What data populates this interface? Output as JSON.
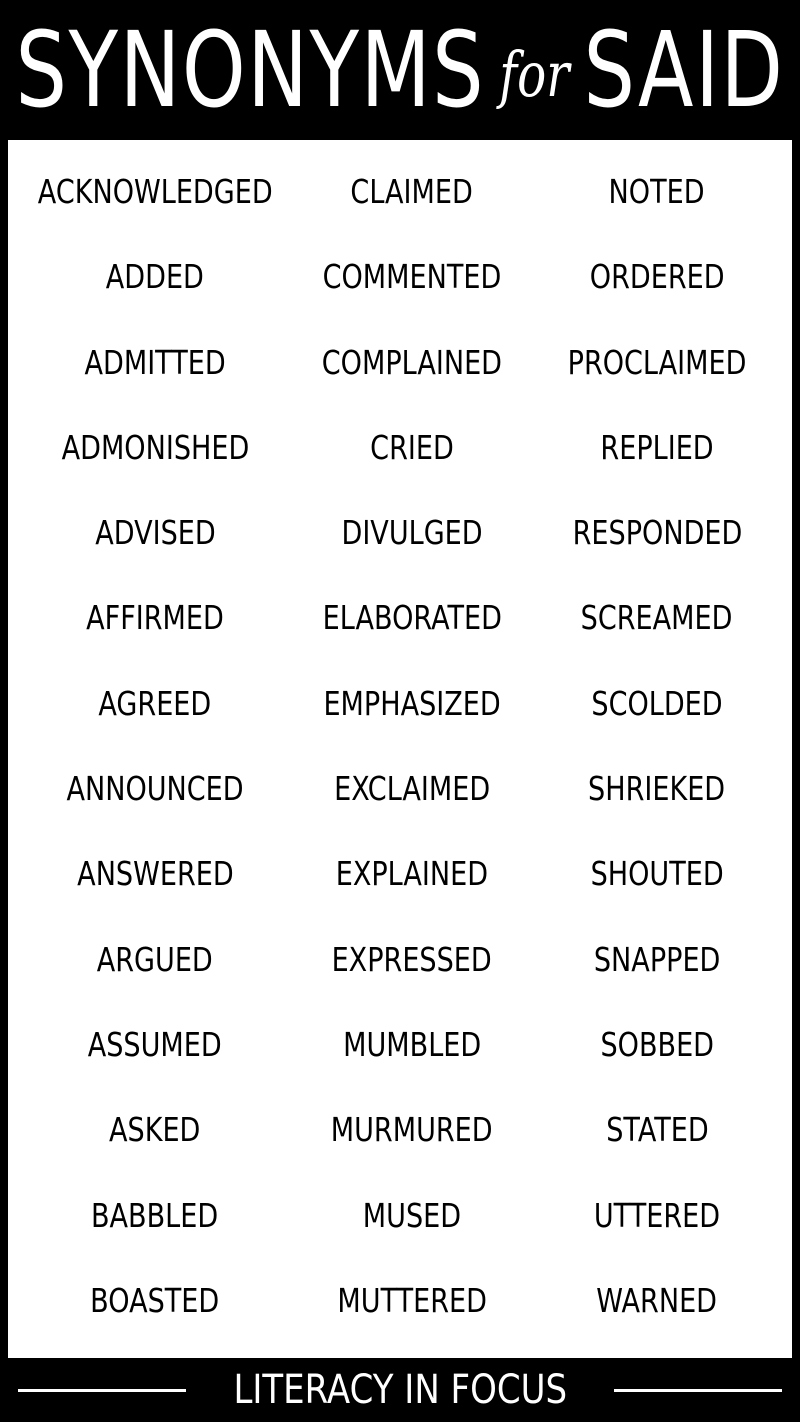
{
  "header": {
    "title_left": "SYNONYMS",
    "title_for": "for",
    "title_right": "SAID"
  },
  "columns": [
    [
      "ACKNOWLEDGED",
      "ADDED",
      "ADMITTED",
      "ADMONISHED",
      "ADVISED",
      "AFFIRMED",
      "AGREED",
      "ANNOUNCED",
      "ANSWERED",
      "ARGUED",
      "ASSUMED",
      "ASKED",
      "BABBLED",
      "BOASTED"
    ],
    [
      "CLAIMED",
      "COMMENTED",
      "COMPLAINED",
      "CRIED",
      "DIVULGED",
      "ELABORATED",
      "EMPHASIZED",
      "EXCLAIMED",
      "EXPLAINED",
      "EXPRESSED",
      "MUMBLED",
      "MURMURED",
      "MUSED",
      "MUTTERED"
    ],
    [
      "NOTED",
      "ORDERED",
      "PROCLAIMED",
      "REPLIED",
      "RESPONDED",
      "SCREAMED",
      "SCOLDED",
      "SHRIEKED",
      "SHOUTED",
      "SNAPPED",
      "SOBBED",
      "STATED",
      "UTTERED",
      "WARNED"
    ]
  ],
  "footer": {
    "text": "LITERACY IN FOCUS"
  },
  "colors": {
    "background": "#000000",
    "panel": "#ffffff",
    "text": "#000000"
  }
}
